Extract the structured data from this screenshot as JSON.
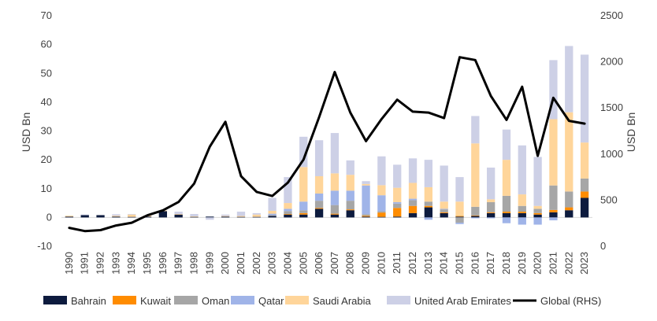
{
  "chart_data": {
    "type": "bar",
    "stacked": true,
    "combo_line": true,
    "categories": [
      "1990",
      "1991",
      "1992",
      "1993",
      "1994",
      "1995",
      "1996",
      "1997",
      "1998",
      "1999",
      "2000",
      "2001",
      "2002",
      "2003",
      "2004",
      "2005",
      "2006",
      "2007",
      "2008",
      "2009",
      "2010",
      "2011",
      "2012",
      "2013",
      "2014",
      "2015",
      "2016",
      "2017",
      "2018",
      "2019",
      "2020",
      "2021",
      "2022",
      "2023"
    ],
    "ylabel": "USD Bn",
    "y2label": "USD Bn",
    "ylim": [
      -10,
      70
    ],
    "y2lim": [
      0,
      2500
    ],
    "yticks": [
      "-10",
      "0",
      "10",
      "20",
      "30",
      "40",
      "50",
      "60",
      "70"
    ],
    "y2ticks": [
      "0",
      "500",
      "1000",
      "1500",
      "2000",
      "2500"
    ],
    "series": [
      {
        "name": "Bahrain",
        "color": "#0d1b3e",
        "values": [
          0.3,
          0.8,
          0.8,
          0.3,
          0.2,
          0.3,
          2.2,
          1.0,
          0.2,
          0.3,
          0.3,
          0.2,
          0.2,
          0.5,
          1.0,
          1.0,
          3.0,
          1.0,
          2.5,
          0.3,
          0.2,
          0.3,
          1.5,
          3.5,
          1.5,
          0.3,
          0.5,
          1.5,
          1.5,
          1.5,
          1.0,
          1.8,
          2.5,
          6.8
        ]
      },
      {
        "name": "Kuwait",
        "color": "#ff8c00",
        "values": [
          0,
          0,
          0,
          0,
          0,
          0,
          0,
          0,
          0,
          0,
          0,
          0,
          0,
          0,
          0.2,
          0.5,
          0.3,
          0.3,
          0.3,
          0.3,
          1.5,
          3.0,
          2.5,
          0.5,
          0.3,
          0.2,
          0.2,
          0.3,
          0.5,
          0.5,
          0.5,
          0.8,
          1.0,
          2.2
        ]
      },
      {
        "name": "Oman",
        "color": "#a6a6a6",
        "values": [
          0,
          0,
          0,
          0,
          0,
          0,
          0,
          0,
          0,
          0,
          0,
          0,
          0,
          0.3,
          1.0,
          1.0,
          2.5,
          3.0,
          3.0,
          0.5,
          0.5,
          1.5,
          2.0,
          1.5,
          1.0,
          -1.8,
          3.0,
          3.5,
          5.5,
          2.0,
          1.5,
          8.5,
          5.5,
          4.5
        ]
      },
      {
        "name": "Qatar",
        "color": "#a0b4e8",
        "values": [
          0,
          0,
          0,
          0,
          0,
          0,
          0,
          0,
          0,
          0,
          0,
          0,
          0,
          0.5,
          0.8,
          3.0,
          2.5,
          5.0,
          3.5,
          10.0,
          5.5,
          0.5,
          0.5,
          -0.8,
          0.2,
          -0.5,
          -0.3,
          -0.3,
          -2.0,
          -2.5,
          -2.5,
          -1.0,
          0,
          0
        ]
      },
      {
        "name": "Saudi Arabia",
        "color": "#ffd59a",
        "values": [
          0.3,
          0,
          0,
          0.3,
          0.8,
          0.3,
          0.2,
          0.2,
          0.2,
          0,
          0.2,
          0.3,
          0.8,
          1.0,
          2.0,
          12.0,
          6.0,
          6.0,
          5.5,
          0.5,
          3.5,
          5.0,
          5.5,
          5.0,
          2.5,
          5.0,
          22.0,
          1.0,
          12.5,
          4.0,
          1.0,
          23.0,
          27.5,
          12.5
        ]
      },
      {
        "name": "United Arab Emirates",
        "color": "#cdd0e6",
        "values": [
          0,
          0.2,
          0,
          0.5,
          0.2,
          0,
          0,
          0.8,
          0.8,
          -0.8,
          0.5,
          1.5,
          0.5,
          4.5,
          9.0,
          10.5,
          12.5,
          14.0,
          5.0,
          1.0,
          10.0,
          8.0,
          8.5,
          9.5,
          12.5,
          8.5,
          9.5,
          11.0,
          10.5,
          17.0,
          17.0,
          20.5,
          23.0,
          30.5
        ]
      },
      {
        "name": "Global (RHS)",
        "color": "#000000",
        "axis": "right",
        "values": [
          200,
          165,
          175,
          225,
          255,
          335,
          390,
          480,
          680,
          1080,
          1350,
          760,
          590,
          545,
          690,
          940,
          1400,
          1890,
          1450,
          1140,
          1380,
          1590,
          1460,
          1450,
          1390,
          2050,
          2020,
          1630,
          1370,
          1730,
          980,
          1610,
          1360,
          1330
        ]
      }
    ]
  }
}
